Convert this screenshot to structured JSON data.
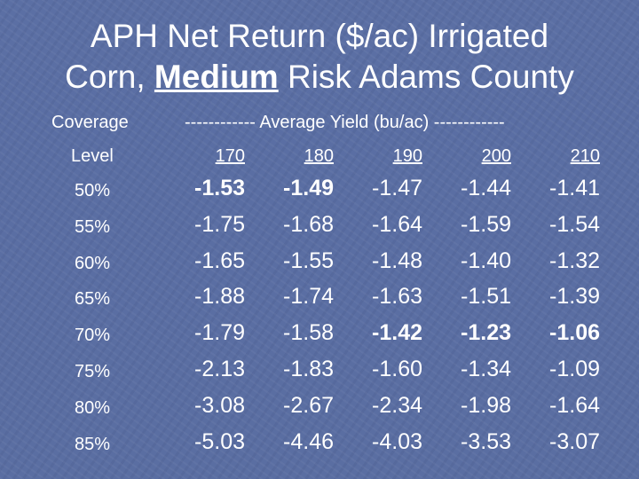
{
  "title": {
    "line1": "APH Net Return ($/ac) Irrigated",
    "line2_prefix": "Corn, ",
    "line2_emph": "Medium",
    "line2_suffix": " Risk Adams County"
  },
  "table": {
    "coverage_label": "Coverage",
    "level_label": "Level",
    "yield_header": "------------ Average Yield (bu/ac) ------------",
    "yields": [
      "170",
      "180",
      "190",
      "200",
      "210"
    ],
    "rows": [
      {
        "level": "50%",
        "values": [
          "-1.53",
          "-1.49",
          "-1.47",
          "-1.44",
          "-1.41"
        ],
        "bold": [
          true,
          true,
          false,
          false,
          false
        ]
      },
      {
        "level": "55%",
        "values": [
          "-1.75",
          "-1.68",
          "-1.64",
          "-1.59",
          "-1.54"
        ],
        "bold": [
          false,
          false,
          false,
          false,
          false
        ]
      },
      {
        "level": "60%",
        "values": [
          "-1.65",
          "-1.55",
          "-1.48",
          "-1.40",
          "-1.32"
        ],
        "bold": [
          false,
          false,
          false,
          false,
          false
        ]
      },
      {
        "level": "65%",
        "values": [
          "-1.88",
          "-1.74",
          "-1.63",
          "-1.51",
          "-1.39"
        ],
        "bold": [
          false,
          false,
          false,
          false,
          false
        ]
      },
      {
        "level": "70%",
        "values": [
          "-1.79",
          "-1.58",
          "-1.42",
          "-1.23",
          "-1.06"
        ],
        "bold": [
          false,
          false,
          true,
          true,
          true
        ]
      },
      {
        "level": "75%",
        "values": [
          "-2.13",
          "-1.83",
          "-1.60",
          "-1.34",
          "-1.09"
        ],
        "bold": [
          false,
          false,
          false,
          false,
          false
        ]
      },
      {
        "level": "80%",
        "values": [
          "-3.08",
          "-2.67",
          "-2.34",
          "-1.98",
          "-1.64"
        ],
        "bold": [
          false,
          false,
          false,
          false,
          false
        ]
      },
      {
        "level": "85%",
        "values": [
          "-5.03",
          "-4.46",
          "-4.03",
          "-3.53",
          "-3.07"
        ],
        "bold": [
          false,
          false,
          false,
          false,
          false
        ]
      }
    ]
  }
}
